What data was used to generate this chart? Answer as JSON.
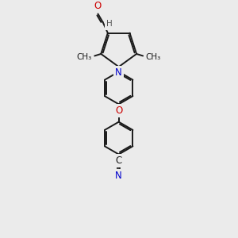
{
  "background_color": "#ebebeb",
  "bond_color": "#1a1a1a",
  "bond_width": 1.4,
  "atom_colors": {
    "O": "#cc0000",
    "N": "#0000cc",
    "C": "#1a1a1a",
    "H": "#555555"
  },
  "font_size_atom": 8.5,
  "font_size_methyl": 7.5
}
